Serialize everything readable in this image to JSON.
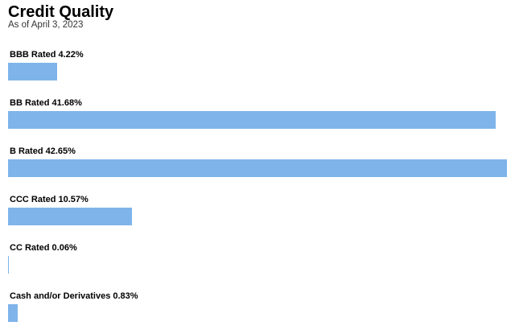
{
  "chart_data": {
    "type": "bar",
    "orientation": "horizontal",
    "title": "Credit Quality",
    "subtitle": "As of April 3, 2023",
    "categories": [
      "BBB Rated",
      "BB Rated",
      "B Rated",
      "CCC Rated",
      "CC Rated",
      "Cash and/or Derivatives"
    ],
    "values": [
      4.22,
      41.68,
      42.65,
      10.57,
      0.06,
      0.83
    ],
    "labels": [
      "BBB Rated 4.22%",
      "BB Rated 41.68%",
      "B Rated 42.65%",
      "CCC Rated 10.57%",
      "CC Rated 0.06%",
      "Cash and/or Derivatives 0.83%"
    ],
    "unit": "%",
    "bar_color": "#7eb4ea",
    "grid": false,
    "legend": "none"
  }
}
